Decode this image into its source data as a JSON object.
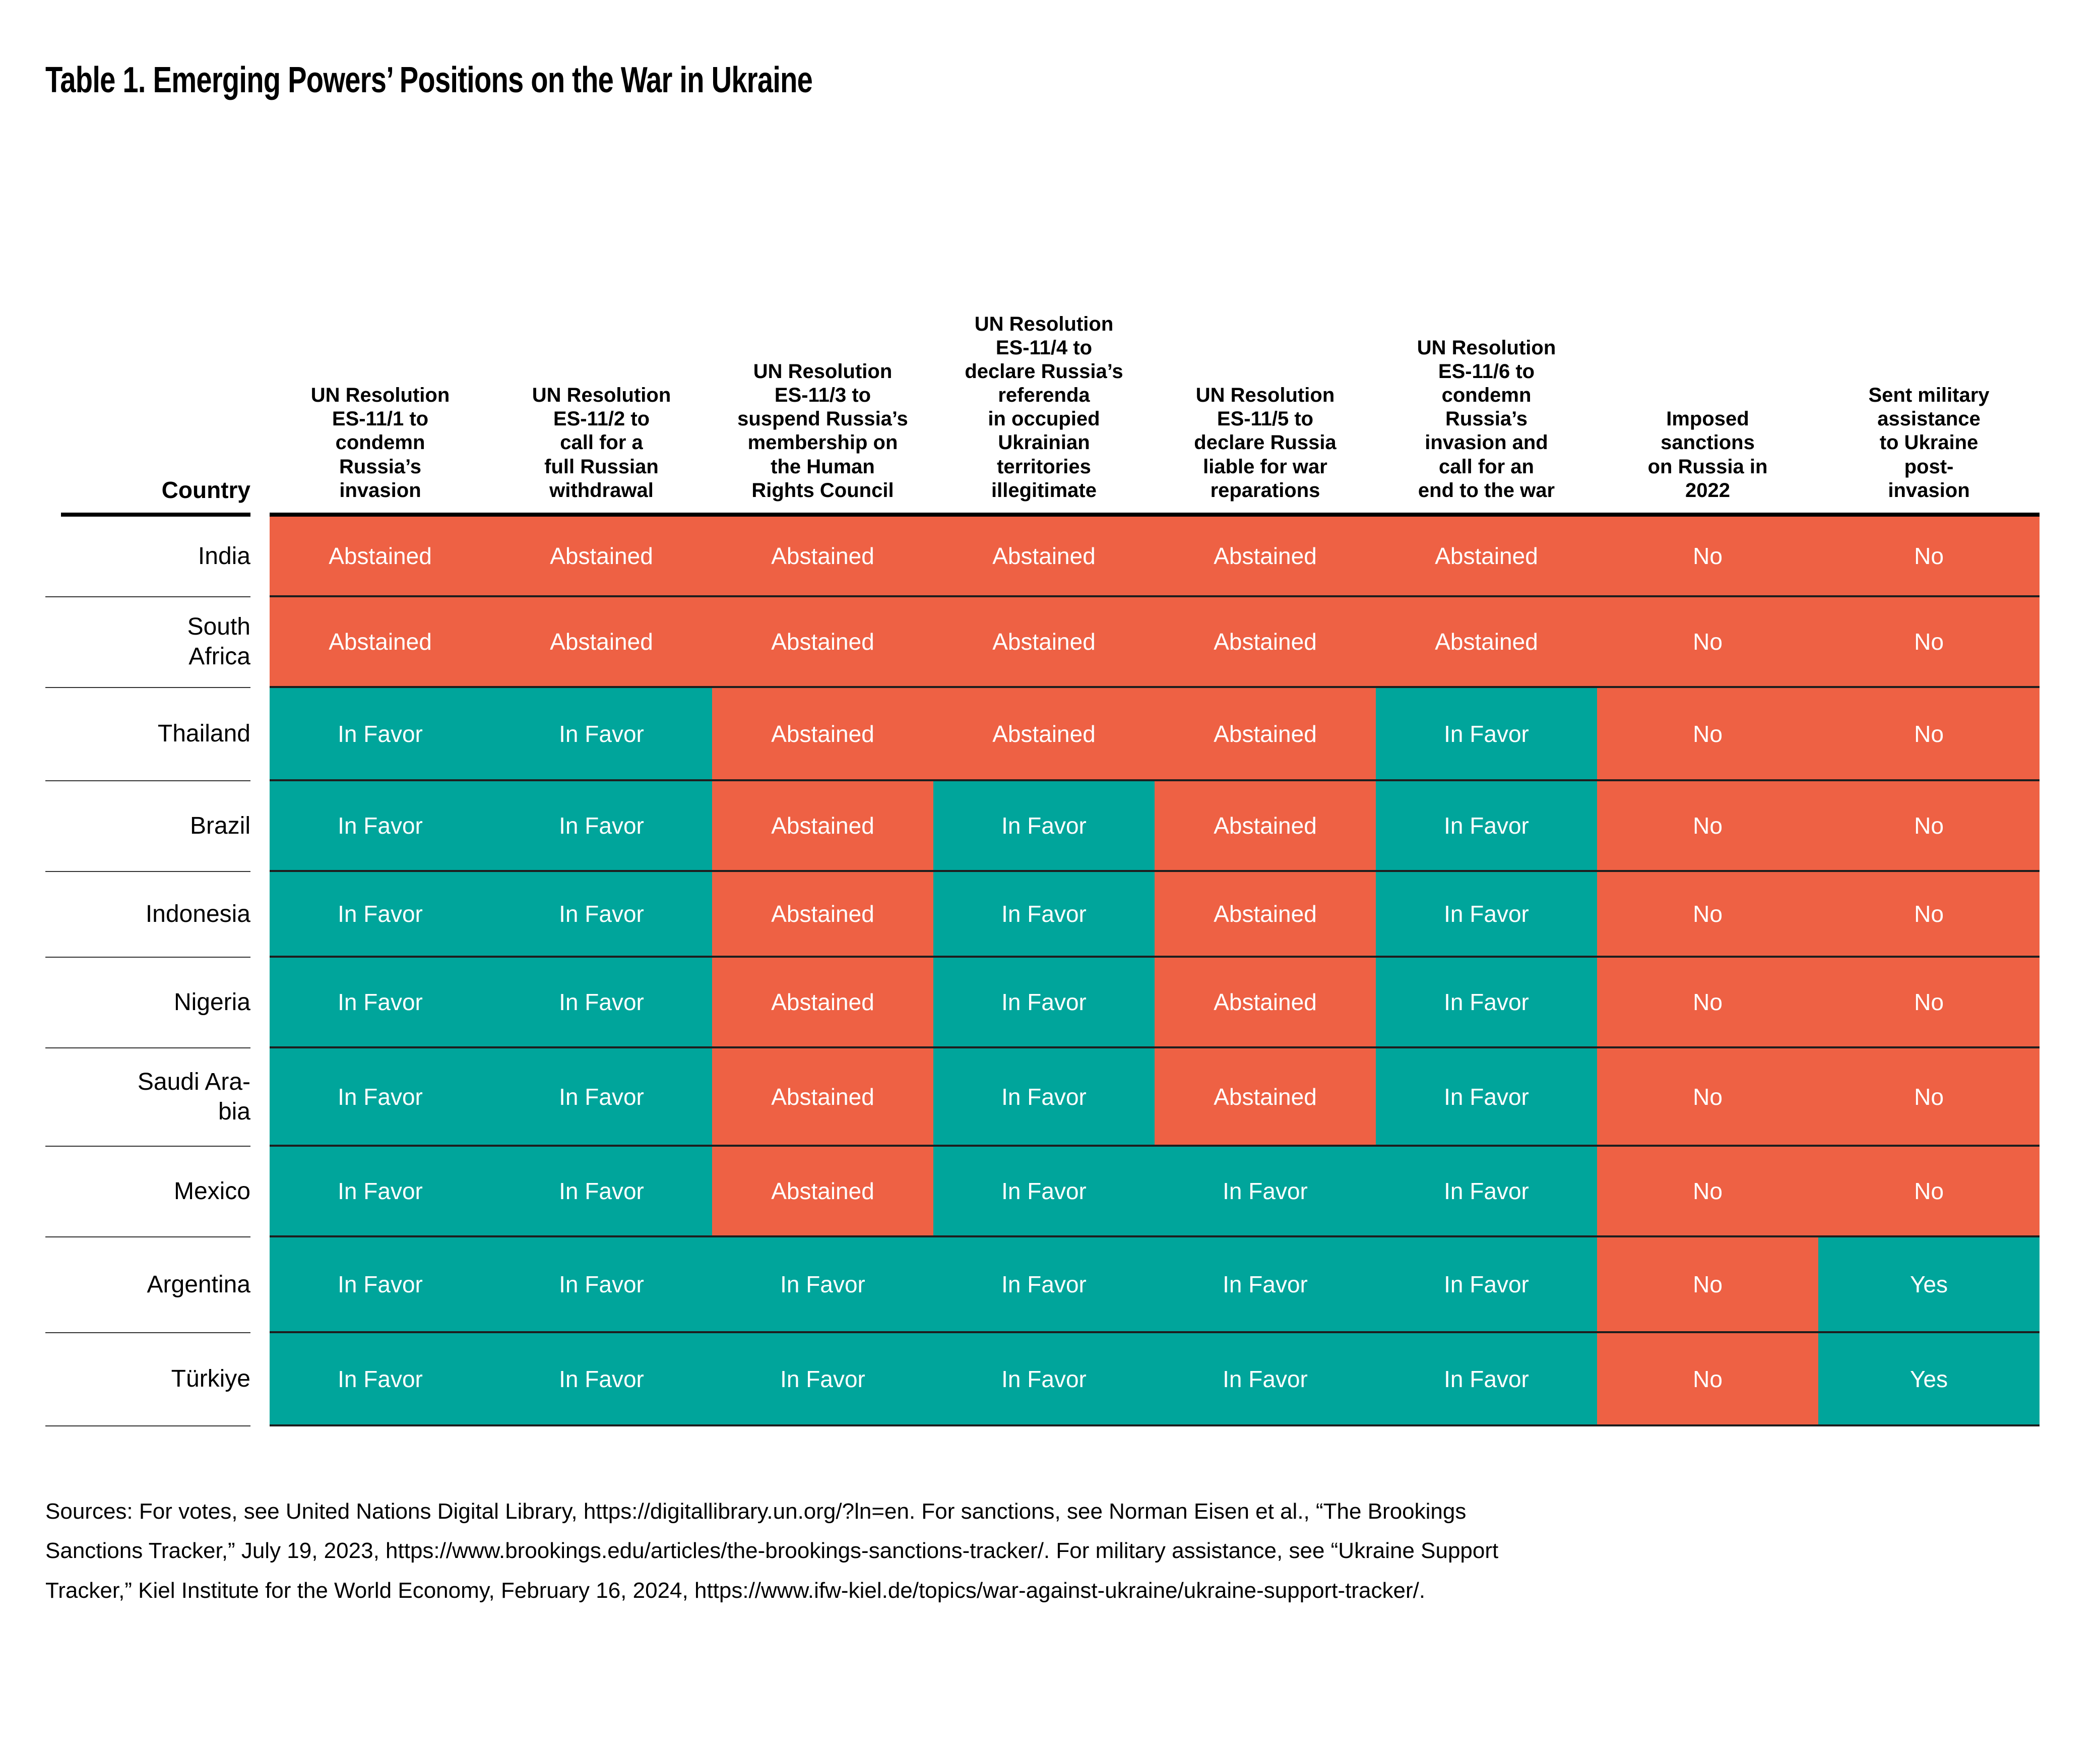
{
  "chart_data": {
    "type": "table",
    "title": "Table 1. Emerging Powers’ Positions on the War in Ukraine",
    "country_column_header": "Country",
    "columns": [
      "UN Resolution\nES-11/1 to\ncondemn\nRussia’s\ninvasion",
      "UN Resolution\nES-11/2 to\ncall for a\nfull Russian\nwithdrawal",
      "UN Resolution\nES-11/3 to\nsuspend Russia’s\nmembership on\nthe Human\nRights Council",
      "UN Resolution\nES-11/4 to\ndeclare Russia’s\nreferenda\nin occupied\nUkrainian\nterritories\nillegitimate",
      "UN Resolution\nES-11/5 to\ndeclare Russia\nliable for war\nreparations",
      "UN Resolution\nES-11/6 to\ncondemn\nRussia’s\ninvasion and\ncall for an\nend to the war",
      "Imposed\nsanctions\non Russia in\n2022",
      "Sent military\nassistance\nto Ukraine\npost-\ninvasion"
    ],
    "rows": [
      {
        "country": "India",
        "label": "India",
        "values": [
          "Abstained",
          "Abstained",
          "Abstained",
          "Abstained",
          "Abstained",
          "Abstained",
          "No",
          "No"
        ]
      },
      {
        "country": "South Africa",
        "label": "South\nAfrica",
        "values": [
          "Abstained",
          "Abstained",
          "Abstained",
          "Abstained",
          "Abstained",
          "Abstained",
          "No",
          "No"
        ]
      },
      {
        "country": "Thailand",
        "label": "Thailand",
        "values": [
          "In Favor",
          "In Favor",
          "Abstained",
          "Abstained",
          "Abstained",
          "In Favor",
          "No",
          "No"
        ]
      },
      {
        "country": "Brazil",
        "label": "Brazil",
        "values": [
          "In Favor",
          "In Favor",
          "Abstained",
          "In Favor",
          "Abstained",
          "In Favor",
          "No",
          "No"
        ]
      },
      {
        "country": "Indonesia",
        "label": "Indonesia",
        "values": [
          "In Favor",
          "In Favor",
          "Abstained",
          "In Favor",
          "Abstained",
          "In Favor",
          "No",
          "No"
        ]
      },
      {
        "country": "Nigeria",
        "label": "Nigeria",
        "values": [
          "In Favor",
          "In Favor",
          "Abstained",
          "In Favor",
          "Abstained",
          "In Favor",
          "No",
          "No"
        ]
      },
      {
        "country": "Saudi Arabia",
        "label": "Saudi Ara-\nbia",
        "values": [
          "In Favor",
          "In Favor",
          "Abstained",
          "In Favor",
          "Abstained",
          "In Favor",
          "No",
          "No"
        ]
      },
      {
        "country": "Mexico",
        "label": "Mexico",
        "values": [
          "In Favor",
          "In Favor",
          "Abstained",
          "In Favor",
          "In Favor",
          "In Favor",
          "No",
          "No"
        ]
      },
      {
        "country": "Argentina",
        "label": "Argentina",
        "values": [
          "In Favor",
          "In Favor",
          "In Favor",
          "In Favor",
          "In Favor",
          "In Favor",
          "No",
          "Yes"
        ]
      },
      {
        "country": "Türkiye",
        "label": "Türkiye",
        "values": [
          "In Favor",
          "In Favor",
          "In Favor",
          "In Favor",
          "In Favor",
          "In Favor",
          "No",
          "Yes"
        ]
      }
    ],
    "value_domain": [
      "In Favor",
      "Abstained",
      "Yes",
      "No"
    ],
    "colors": {
      "abstained_or_no": "#EE6144",
      "in_favor_or_yes": "#00A59B"
    },
    "legend_position": "none"
  },
  "sources": "Sources: For votes, see United Nations Digital Library, https://digitallibrary.un.org/?ln=en. For sanctions, see Norman Eisen et al., “The Brookings\nSanctions Tracker,” July 19, 2023, https://www.brookings.edu/articles/the-brookings-sanctions-tracker/. For military assistance, see “Ukraine Support\nTracker,” Kiel Institute for the World Economy, February 16, 2024, https://www.ifw-kiel.de/topics/war-against-ukraine/ukraine-support-tracker/."
}
